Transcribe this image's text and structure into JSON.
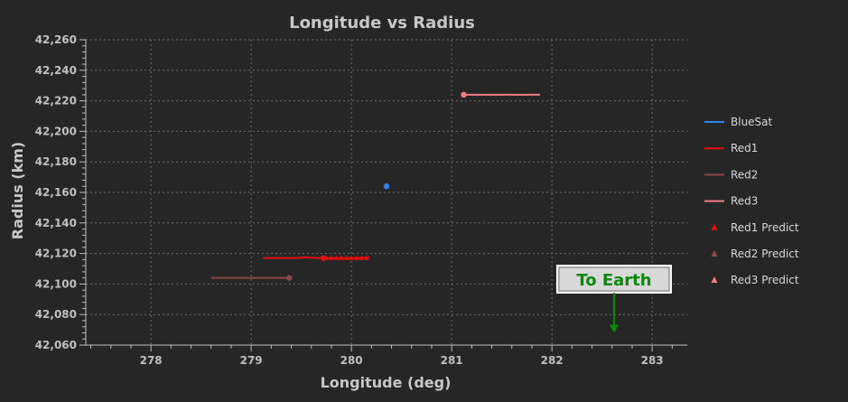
{
  "chart_data": {
    "type": "scatter",
    "title": "Longitude vs Radius",
    "xlabel": "Longitude (deg)",
    "ylabel": "Radius (km)",
    "xlim": [
      277.35,
      283.35
    ],
    "ylim": [
      42060,
      42260
    ],
    "xticks": [
      278,
      279,
      280,
      281,
      282,
      283
    ],
    "yticks": [
      42060,
      42080,
      42100,
      42120,
      42140,
      42160,
      42180,
      42200,
      42220,
      42240,
      42260
    ],
    "ytick_labels": [
      "42,060",
      "42,080",
      "42,100",
      "42,120",
      "42,140",
      "42,160",
      "42,180",
      "42,200",
      "42,220",
      "42,240",
      "42,260"
    ],
    "grid": true,
    "legend_position": "right",
    "series": [
      {
        "name": "BlueSat",
        "color": "#2b86e8",
        "kind": "line",
        "x": [
          280.35
        ],
        "y": [
          42164
        ],
        "marker_x": 280.35,
        "marker_y": 42164
      },
      {
        "name": "Red1",
        "color": "#e01010",
        "kind": "line",
        "x": [
          279.12,
          279.3,
          279.45,
          279.55,
          279.65,
          279.75,
          279.85,
          279.95,
          280.05,
          280.18
        ],
        "y": [
          42117,
          42117,
          42117,
          42117.5,
          42117,
          42117,
          42117,
          42117,
          42117,
          42117.5
        ],
        "marker_x": 279.72,
        "marker_y": 42117
      },
      {
        "name": "Red2",
        "color": "#8a4848",
        "kind": "line",
        "x": [
          278.6,
          279.38
        ],
        "y": [
          42104,
          42104
        ],
        "marker_x": 279.38,
        "marker_y": 42104
      },
      {
        "name": "Red3",
        "color": "#f08080",
        "kind": "line",
        "x": [
          281.12,
          281.88
        ],
        "y": [
          42224,
          42224
        ],
        "marker_x": 281.12,
        "marker_y": 42224
      },
      {
        "name": "Red1 Predict",
        "color": "#e01010",
        "kind": "triangle",
        "x": [
          279.75,
          279.8,
          279.85,
          279.9,
          279.95,
          280.0,
          280.05,
          280.1,
          280.15
        ],
        "y": [
          42117,
          42117,
          42117,
          42117,
          42117,
          42117,
          42117,
          42117,
          42117
        ]
      },
      {
        "name": "Red2 Predict",
        "color": "#8a4848",
        "kind": "triangle",
        "x": [],
        "y": []
      },
      {
        "name": "Red3 Predict",
        "color": "#f08080",
        "kind": "triangle",
        "x": [],
        "y": []
      }
    ],
    "annotation": {
      "text": "To Earth",
      "x": 282.62,
      "y": 42080,
      "arrow_to_y": 42068,
      "color": "#0a8a0a"
    }
  }
}
